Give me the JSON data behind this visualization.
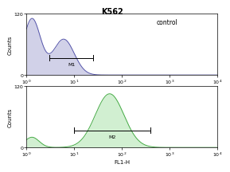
{
  "title": "K562",
  "top_histogram": {
    "color": "#5555aa",
    "fill_color": "#9999cc",
    "label": "control",
    "gate_label": "M1",
    "gate_x_start": 3.0,
    "gate_x_end": 25.0,
    "spike_peak_x": 1.3,
    "spike_peak_y": 110,
    "spike_sigma": 0.18,
    "main_peak_x": 6.0,
    "main_peak_y": 70,
    "main_sigma": 0.22,
    "ylim": [
      0,
      120
    ],
    "ytick_top": 120
  },
  "bottom_histogram": {
    "color": "#44aa44",
    "fill_color": "#99dd99",
    "gate_label": "M2",
    "gate_x_start": 10.0,
    "gate_x_end": 400.0,
    "spike_peak_x": 1.3,
    "spike_peak_y": 20,
    "spike_sigma": 0.15,
    "main_peak_x": 55.0,
    "main_peak_y": 105,
    "main_sigma": 0.3,
    "ylim": [
      0,
      120
    ],
    "ytick_top": 120
  },
  "xlabel": "FL1-H",
  "ylabel": "Counts",
  "xlim_log": [
    1,
    10000
  ],
  "background_color": "#ffffff",
  "outer_bg": "#ffffff",
  "title_fontsize": 7,
  "label_fontsize": 5,
  "tick_fontsize": 4.5,
  "gate_fontsize": 4.5,
  "control_fontsize": 5.5
}
